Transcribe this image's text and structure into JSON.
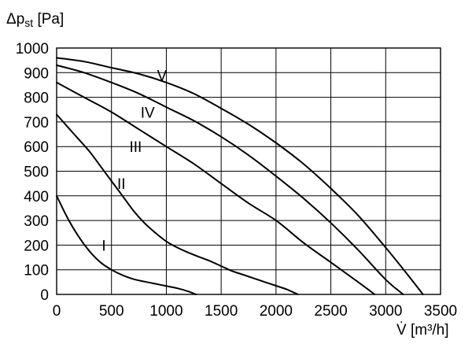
{
  "chart_data": {
    "type": "line",
    "ylabel": "Δp",
    "ylabel_sub": "st",
    "ylabel_unit": "[Pa]",
    "xlabel": "V̇",
    "xlabel_unit": "[m³/h]",
    "xlim": [
      0,
      3500
    ],
    "ylim": [
      0,
      1000
    ],
    "xticks": [
      0,
      500,
      1000,
      1500,
      2000,
      2500,
      3000,
      3500
    ],
    "yticks": [
      0,
      100,
      200,
      300,
      400,
      500,
      600,
      700,
      800,
      900,
      1000
    ],
    "grid": true,
    "series": [
      {
        "name": "I",
        "label_at": [
          430,
          200
        ],
        "points": [
          [
            0,
            400
          ],
          [
            100,
            310
          ],
          [
            200,
            235
          ],
          [
            300,
            175
          ],
          [
            400,
            130
          ],
          [
            500,
            100
          ],
          [
            600,
            78
          ],
          [
            700,
            62
          ],
          [
            800,
            52
          ],
          [
            900,
            43
          ],
          [
            1000,
            34
          ],
          [
            1100,
            25
          ],
          [
            1200,
            12
          ],
          [
            1270,
            0
          ]
        ]
      },
      {
        "name": "II",
        "label_at": [
          590,
          450
        ],
        "points": [
          [
            0,
            730
          ],
          [
            100,
            680
          ],
          [
            200,
            630
          ],
          [
            300,
            580
          ],
          [
            400,
            520
          ],
          [
            500,
            460
          ],
          [
            600,
            400
          ],
          [
            700,
            340
          ],
          [
            800,
            290
          ],
          [
            900,
            250
          ],
          [
            1000,
            215
          ],
          [
            1100,
            190
          ],
          [
            1200,
            170
          ],
          [
            1300,
            152
          ],
          [
            1400,
            135
          ],
          [
            1500,
            115
          ],
          [
            1600,
            95
          ],
          [
            1700,
            80
          ],
          [
            1800,
            65
          ],
          [
            1900,
            50
          ],
          [
            2000,
            35
          ],
          [
            2100,
            20
          ],
          [
            2200,
            0
          ]
        ]
      },
      {
        "name": "III",
        "label_at": [
          720,
          600
        ],
        "points": [
          [
            0,
            860
          ],
          [
            250,
            800
          ],
          [
            500,
            740
          ],
          [
            750,
            670
          ],
          [
            1000,
            600
          ],
          [
            1250,
            530
          ],
          [
            1500,
            450
          ],
          [
            1750,
            370
          ],
          [
            2000,
            300
          ],
          [
            2250,
            210
          ],
          [
            2500,
            130
          ],
          [
            2750,
            50
          ],
          [
            2900,
            0
          ]
        ]
      },
      {
        "name": "IV",
        "label_at": [
          830,
          740
        ],
        "points": [
          [
            0,
            930
          ],
          [
            250,
            900
          ],
          [
            500,
            860
          ],
          [
            750,
            815
          ],
          [
            1000,
            760
          ],
          [
            1250,
            705
          ],
          [
            1500,
            640
          ],
          [
            1750,
            565
          ],
          [
            2000,
            480
          ],
          [
            2250,
            390
          ],
          [
            2500,
            290
          ],
          [
            2750,
            180
          ],
          [
            3000,
            60
          ],
          [
            3160,
            0
          ]
        ]
      },
      {
        "name": "V",
        "label_at": [
          960,
          890
        ],
        "points": [
          [
            0,
            960
          ],
          [
            250,
            945
          ],
          [
            500,
            920
          ],
          [
            750,
            895
          ],
          [
            1000,
            860
          ],
          [
            1250,
            815
          ],
          [
            1500,
            755
          ],
          [
            1750,
            690
          ],
          [
            2000,
            615
          ],
          [
            2250,
            530
          ],
          [
            2500,
            430
          ],
          [
            2750,
            320
          ],
          [
            3000,
            190
          ],
          [
            3200,
            80
          ],
          [
            3340,
            0
          ]
        ]
      }
    ]
  }
}
